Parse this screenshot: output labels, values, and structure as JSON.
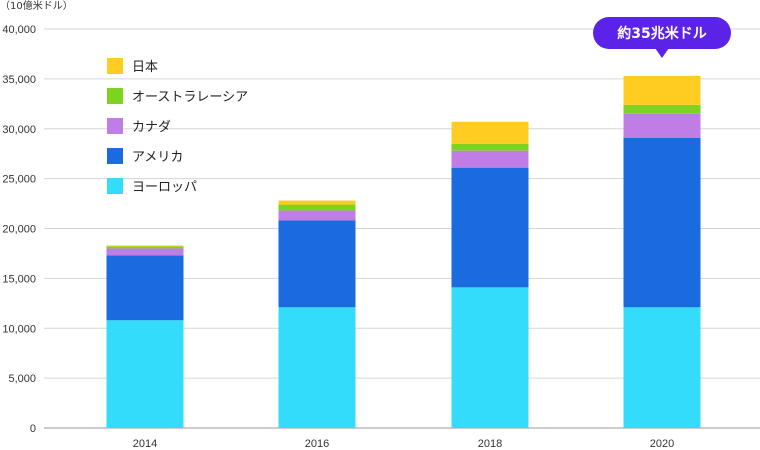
{
  "chart_data": {
    "type": "bar",
    "stacked": true,
    "unit_label": "（10億米ドル）",
    "categories": [
      "2014",
      "2016",
      "2018",
      "2020"
    ],
    "ylim": [
      0,
      40000
    ],
    "yticks": [
      "0",
      "5,000",
      "10,000",
      "15,000",
      "20,000",
      "25,000",
      "30,000",
      "35,000",
      "40,000"
    ],
    "ytick_values": [
      0,
      5000,
      10000,
      15000,
      20000,
      25000,
      30000,
      35000,
      40000
    ],
    "grid": true,
    "legend_position": "top-left",
    "series": [
      {
        "name": "ヨーロッパ",
        "color": "#33DCFA",
        "values": [
          10800,
          12100,
          14100,
          12100
        ]
      },
      {
        "name": "アメリカ",
        "color": "#1A6BE0",
        "values": [
          6500,
          8700,
          12000,
          17000
        ]
      },
      {
        "name": "カナダ",
        "color": "#C07DE6",
        "values": [
          700,
          1000,
          1700,
          2400
        ]
      },
      {
        "name": "オーストラレーシア",
        "color": "#7ED321",
        "values": [
          200,
          600,
          700,
          900
        ]
      },
      {
        "name": "日本",
        "color": "#FFCC22",
        "values": [
          100,
          400,
          2200,
          2900
        ]
      }
    ],
    "legend_order": [
      "日本",
      "オーストラレーシア",
      "カナダ",
      "アメリカ",
      "ヨーロッパ"
    ],
    "annotation": {
      "text": "約35兆米ドル",
      "category": "2020",
      "color": "#5B22E8"
    }
  }
}
